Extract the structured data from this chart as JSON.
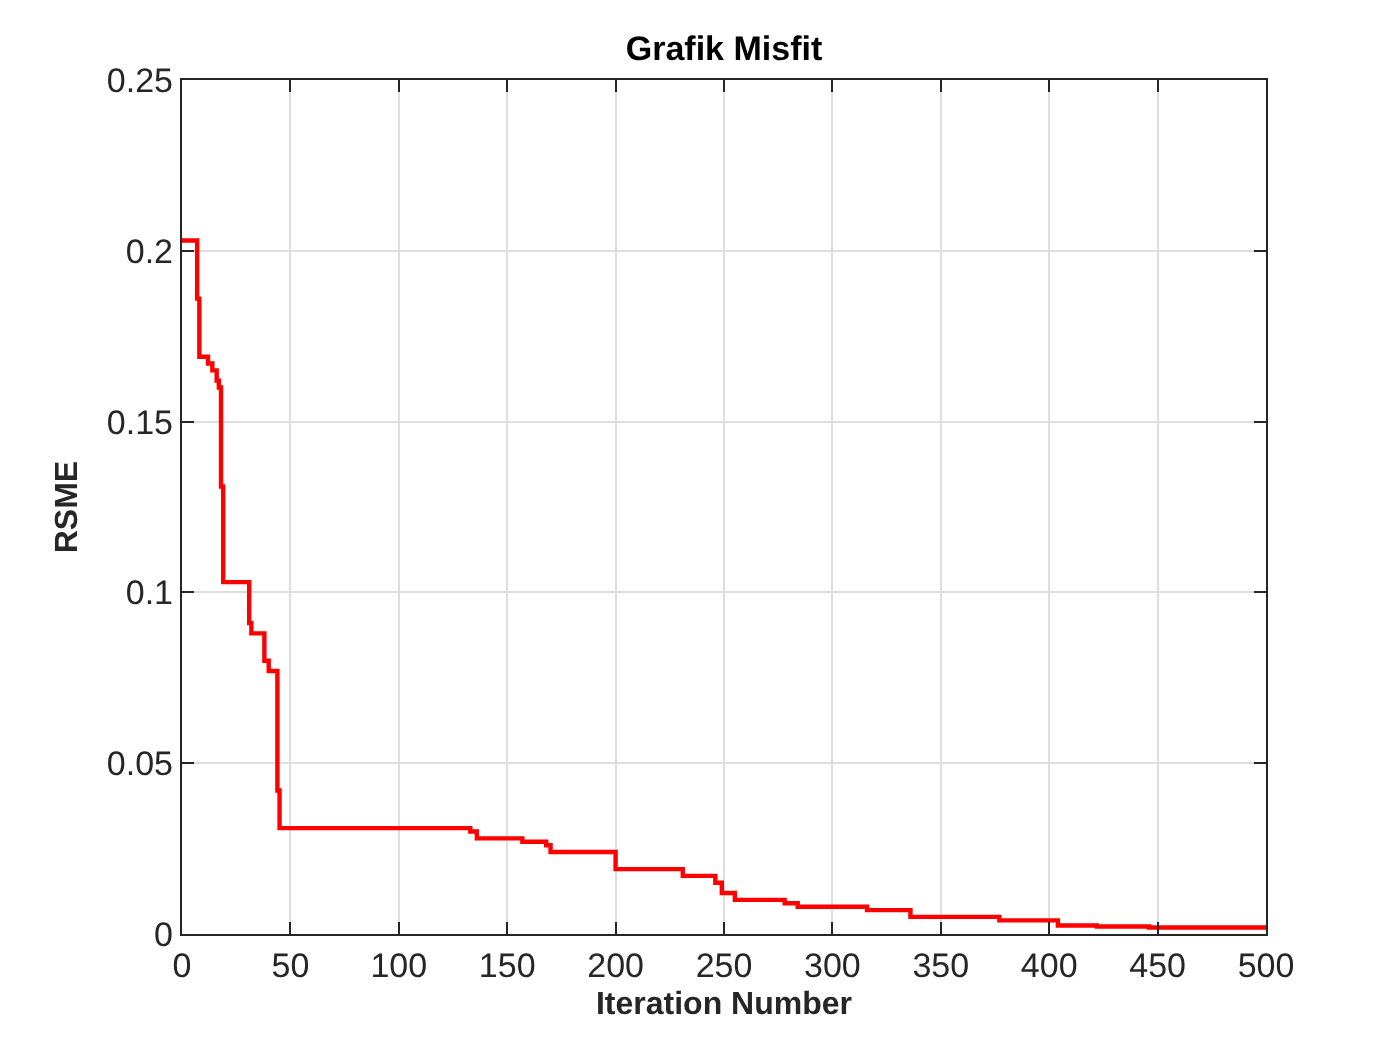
{
  "chart_data": {
    "type": "step",
    "title": "Grafik Misfit",
    "xlabel": "Iteration Number",
    "ylabel": "RSME",
    "x": [
      0,
      7,
      8,
      12,
      14,
      16,
      17,
      18,
      19,
      31,
      32,
      38,
      40,
      44,
      45,
      133,
      136,
      157,
      168,
      170,
      200,
      231,
      246,
      249,
      255,
      278,
      284,
      316,
      336,
      377,
      404,
      422,
      446,
      500
    ],
    "series": [
      {
        "color": "#ff0000",
        "values": [
          0.203,
          0.186,
          0.169,
          0.167,
          0.165,
          0.162,
          0.16,
          0.131,
          0.103,
          0.091,
          0.088,
          0.08,
          0.077,
          0.042,
          0.031,
          0.03,
          0.028,
          0.027,
          0.026,
          0.024,
          0.019,
          0.017,
          0.015,
          0.012,
          0.01,
          0.009,
          0.008,
          0.007,
          0.005,
          0.004,
          0.0025,
          0.0022,
          0.0019,
          0.0019
        ]
      }
    ],
    "xlim": [
      0,
      500
    ],
    "ylim": [
      0,
      0.25
    ],
    "xticks": [
      0,
      50,
      100,
      150,
      200,
      250,
      300,
      350,
      400,
      450,
      500
    ],
    "yticks": [
      0,
      0.05,
      0.1,
      0.15,
      0.2,
      0.25
    ],
    "grid": true
  }
}
